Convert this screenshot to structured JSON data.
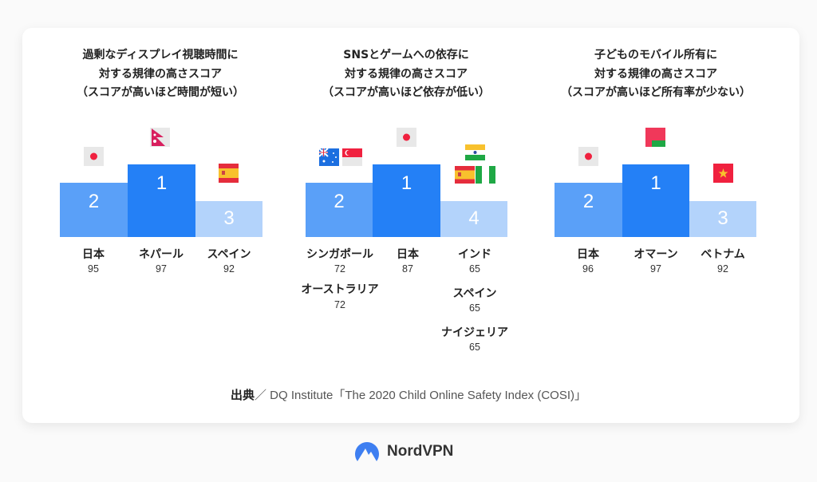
{
  "colors": {
    "rank1": "#2480f6",
    "rank2": "#5aa0f8",
    "rank3": "#b3d3fb"
  },
  "chart_data": [
    {
      "type": "bar",
      "title": "過剰なディスプレイ視聴時間に\n対する規律の高さスコア\n（スコアが高いほど時間が短い）",
      "entries": [
        {
          "rank": "2",
          "countries": [
            {
              "name": "日本",
              "score": 95,
              "flag": "japan-flag"
            }
          ]
        },
        {
          "rank": "1",
          "countries": [
            {
              "name": "ネパール",
              "score": 97,
              "flag": "nepal-flag"
            }
          ]
        },
        {
          "rank": "3",
          "countries": [
            {
              "name": "スペイン",
              "score": 92,
              "flag": "spain-flag"
            }
          ]
        }
      ]
    },
    {
      "type": "bar",
      "title": "SNSとゲームへの依存に\n対する規律の高さスコア\n（スコアが高いほど依存が低い）",
      "entries": [
        {
          "rank": "2",
          "countries": [
            {
              "name": "シンガポール",
              "score": 72,
              "flag": "singapore-flag"
            },
            {
              "name": "オーストラリア",
              "score": 72,
              "flag": "australia-flag"
            }
          ]
        },
        {
          "rank": "1",
          "countries": [
            {
              "name": "日本",
              "score": 87,
              "flag": "japan-flag"
            }
          ]
        },
        {
          "rank": "4",
          "countries": [
            {
              "name": "インド",
              "score": 65,
              "flag": "india-flag"
            },
            {
              "name": "スペイン",
              "score": 65,
              "flag": "spain-flag"
            },
            {
              "name": "ナイジェリア",
              "score": 65,
              "flag": "nigeria-flag"
            }
          ]
        }
      ]
    },
    {
      "type": "bar",
      "title": "子どものモバイル所有に\n対する規律の高さスコア\n（スコアが高いほど所有率が少ない）",
      "entries": [
        {
          "rank": "2",
          "countries": [
            {
              "name": "日本",
              "score": 96,
              "flag": "japan-flag"
            }
          ]
        },
        {
          "rank": "1",
          "countries": [
            {
              "name": "オマーン",
              "score": 97,
              "flag": "oman-flag"
            }
          ]
        },
        {
          "rank": "3",
          "countries": [
            {
              "name": "ベトナム",
              "score": 92,
              "flag": "vietnam-flag"
            }
          ]
        }
      ]
    }
  ],
  "source": {
    "label": "出典",
    "text": "／ DQ Institute「The 2020 Child Online Safety Index (COSI)」"
  },
  "brand": "NordVPN"
}
